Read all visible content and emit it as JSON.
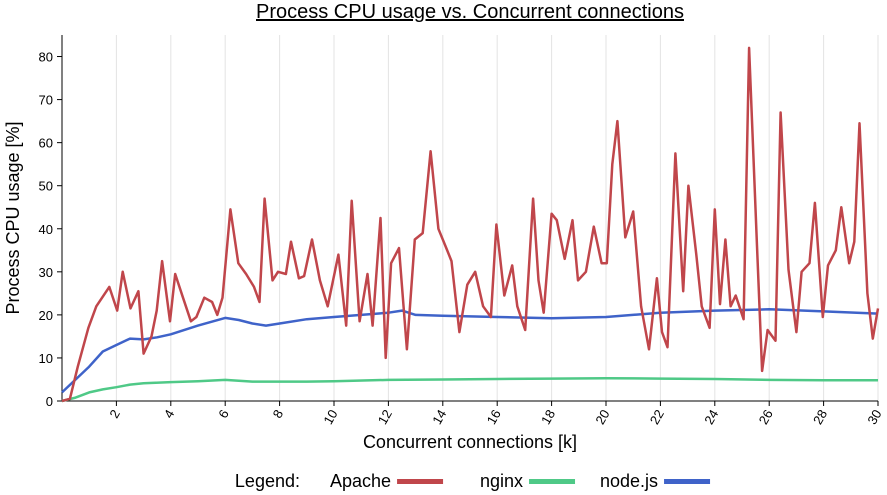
{
  "chart_data": {
    "type": "line",
    "title": "Process CPU usage vs. Concurrent connections",
    "x_label": "Concurrent connections [k]",
    "y_label": "Process CPU usage [%]",
    "legend_title": "Legend:",
    "legend": "bottom",
    "grid": true,
    "xlim": [
      0,
      30
    ],
    "xticks": [
      2,
      4,
      6,
      8,
      10,
      12,
      14,
      16,
      18,
      20,
      22,
      24,
      26,
      28,
      30
    ],
    "ylim": [
      0,
      85
    ],
    "yticks": [
      0,
      10,
      20,
      30,
      40,
      50,
      60,
      70,
      80
    ],
    "series": [
      {
        "name": "Apache",
        "color": "#c0464b",
        "x": [
          0,
          0.29,
          0.58,
          0.97,
          1.26,
          1.74,
          2.03,
          2.23,
          2.52,
          2.81,
          3.0,
          3.29,
          3.48,
          3.68,
          3.97,
          4.16,
          4.45,
          4.74,
          4.94,
          5.23,
          5.52,
          5.71,
          5.9,
          6.19,
          6.48,
          6.77,
          7.06,
          7.26,
          7.45,
          7.74,
          7.94,
          8.23,
          8.42,
          8.71,
          8.9,
          9.19,
          9.48,
          9.77,
          10.16,
          10.45,
          10.65,
          10.94,
          11.23,
          11.42,
          11.71,
          11.9,
          12.1,
          12.39,
          12.68,
          12.97,
          13.26,
          13.55,
          13.84,
          14.13,
          14.32,
          14.61,
          14.9,
          15.19,
          15.48,
          15.77,
          15.97,
          16.26,
          16.55,
          16.74,
          17.03,
          17.32,
          17.52,
          17.71,
          18.0,
          18.19,
          18.48,
          18.77,
          18.97,
          19.26,
          19.55,
          19.84,
          20.03,
          20.23,
          20.42,
          20.71,
          21.0,
          21.29,
          21.58,
          21.87,
          22.06,
          22.26,
          22.55,
          22.84,
          23.03,
          23.32,
          23.52,
          23.81,
          24.0,
          24.19,
          24.39,
          24.58,
          24.77,
          25.06,
          25.26,
          25.55,
          25.74,
          25.94,
          26.23,
          26.42,
          26.71,
          27.0,
          27.19,
          27.48,
          27.68,
          27.97,
          28.16,
          28.45,
          28.65,
          28.94,
          29.13,
          29.32,
          29.61,
          29.81,
          30.0
        ],
        "values": [
          0,
          0.5,
          8,
          17,
          22,
          26.5,
          21,
          30,
          21.5,
          25.5,
          11,
          15,
          21,
          32.5,
          18.5,
          29.5,
          24,
          18.5,
          19.5,
          24,
          23,
          20,
          24,
          44.5,
          32,
          29.5,
          26.5,
          23,
          47,
          28,
          30,
          29.5,
          37,
          28.5,
          29,
          37.5,
          28,
          22,
          34,
          17.5,
          46.5,
          18.5,
          29.5,
          17.5,
          42.5,
          10,
          32,
          35.5,
          12,
          37.5,
          39,
          58,
          40,
          35.5,
          32.5,
          16,
          27,
          30,
          22,
          19.5,
          41,
          24.5,
          31.5,
          22,
          16.5,
          47,
          28,
          20.5,
          43.5,
          42,
          33,
          42,
          28,
          30,
          40.5,
          32,
          32,
          55,
          65,
          38,
          44,
          22,
          12,
          28.5,
          16,
          12.5,
          57.5,
          25.5,
          50,
          34,
          22,
          17,
          44.5,
          22.5,
          37.5,
          22,
          24.5,
          19,
          82,
          36,
          7,
          16.5,
          14,
          67,
          30.5,
          16,
          30,
          32,
          46,
          19.5,
          31.5,
          35,
          45,
          32,
          37,
          64.5,
          25,
          14.5,
          21.5
        ]
      },
      {
        "name": "nginx",
        "color": "#4fc987",
        "x": [
          0,
          0.5,
          1,
          1.5,
          2,
          2.5,
          3,
          4,
          5,
          6,
          7,
          8,
          9,
          10,
          12,
          14,
          16,
          18,
          20,
          22,
          24,
          26,
          28,
          30
        ],
        "values": [
          0,
          0.8,
          2,
          2.7,
          3.2,
          3.8,
          4.1,
          4.4,
          4.6,
          4.9,
          4.5,
          4.5,
          4.5,
          4.6,
          4.9,
          5,
          5.1,
          5.2,
          5.3,
          5.2,
          5.1,
          4.9,
          4.8,
          4.8
        ]
      },
      {
        "name": "node.js",
        "color": "#3f63c9",
        "x": [
          0,
          0.5,
          1,
          1.5,
          2,
          2.5,
          3,
          3.5,
          4,
          5,
          6,
          6.5,
          7,
          7.5,
          8,
          9,
          10,
          11,
          12,
          12.5,
          13,
          14,
          16,
          18,
          20,
          22,
          24,
          26,
          28,
          30
        ],
        "values": [
          2,
          5,
          8,
          11.5,
          13,
          14.5,
          14.3,
          14.8,
          15.5,
          17.5,
          19.3,
          18.8,
          18,
          17.5,
          18,
          19,
          19.5,
          20,
          20.5,
          21,
          20,
          19.8,
          19.5,
          19.2,
          19.5,
          20.5,
          21,
          21.3,
          20.8,
          20.3
        ]
      }
    ]
  }
}
